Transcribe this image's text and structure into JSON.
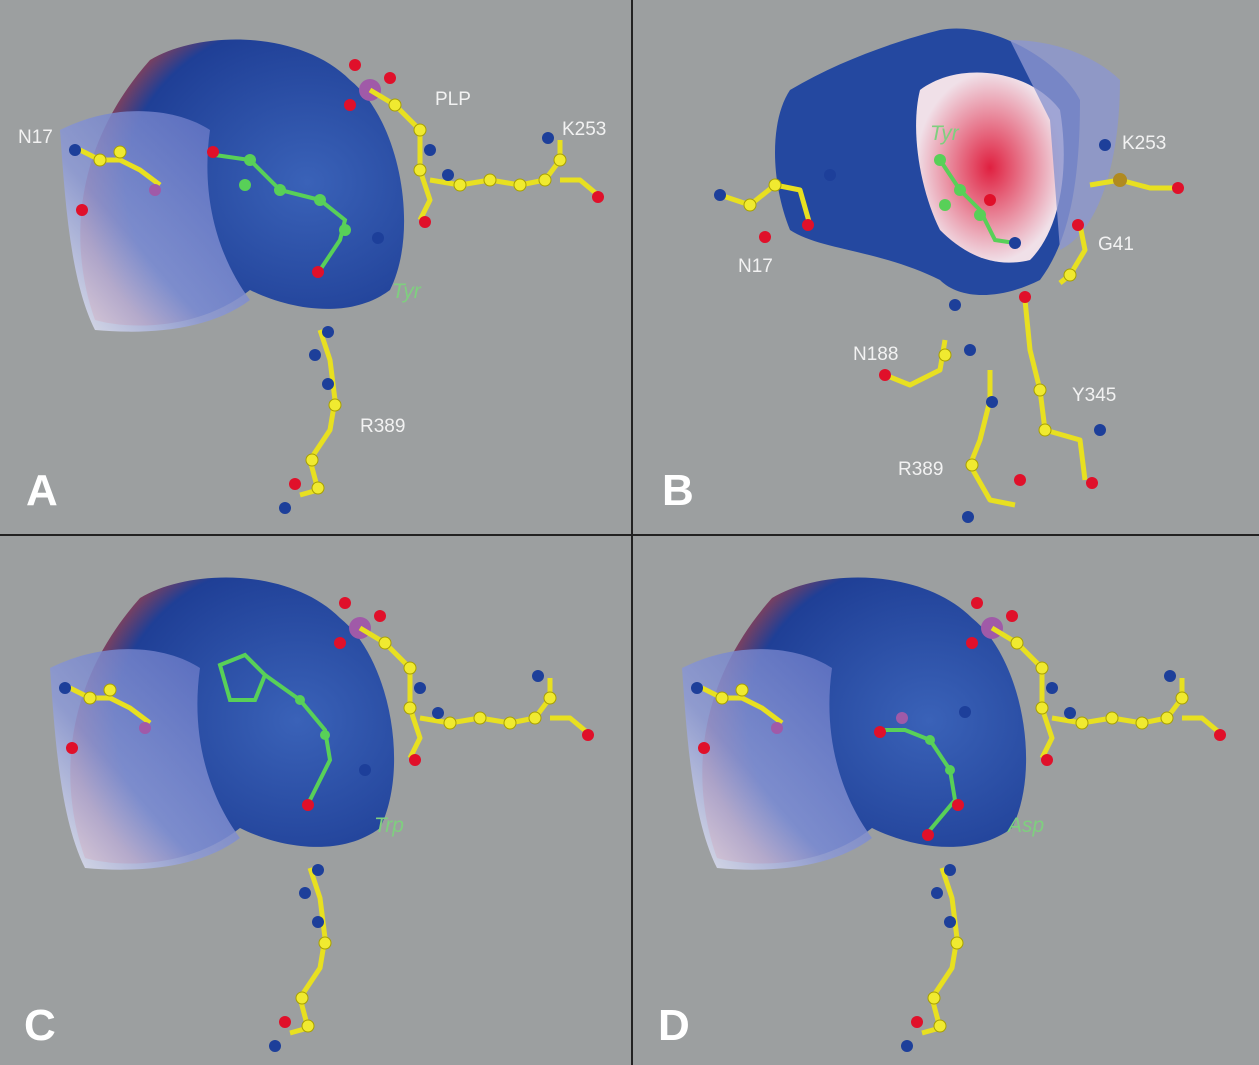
{
  "panels": [
    {
      "label": "A",
      "annotations": [
        "N17",
        "PLP",
        "K253",
        "R389"
      ],
      "ligand": "Tyr"
    },
    {
      "label": "B",
      "annotations": [
        "K253",
        "N17",
        "G41",
        "N188",
        "Y345",
        "R389"
      ],
      "ligand": "Tyr"
    },
    {
      "label": "C",
      "ligand": "Trp"
    },
    {
      "label": "D",
      "ligand": "Asp"
    }
  ]
}
